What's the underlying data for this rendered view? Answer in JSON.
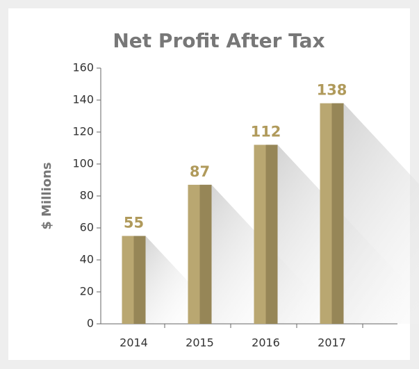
{
  "chart_data": {
    "type": "bar",
    "title": "Net Profit After Tax",
    "y_label": "$ Millions",
    "categories": [
      "2014",
      "2015",
      "2016",
      "2017"
    ],
    "values": [
      55,
      87,
      112,
      138
    ],
    "color": "#b9a771",
    "side_color": "#968657",
    "label_color": "#b09a5b",
    "ylim": [
      0,
      160
    ],
    "yticks": [
      0,
      20,
      40,
      60,
      80,
      100,
      120,
      140,
      160
    ],
    "grid": false
  }
}
